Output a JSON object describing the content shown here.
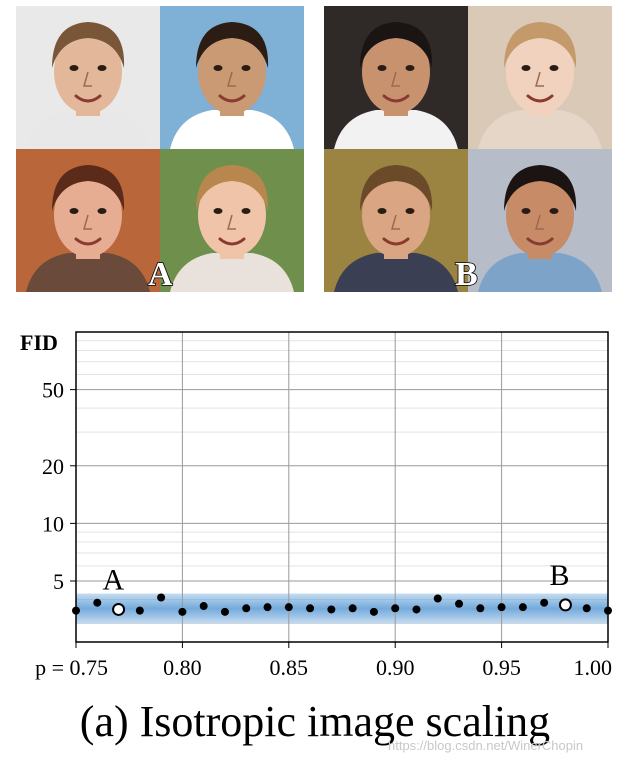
{
  "panels": {
    "a_label": "A",
    "b_label": "B",
    "a_tiles": [
      {
        "bg": "#e9e9e9",
        "skin": "#e3b89a",
        "hair": "#7a5638",
        "shirt": "#e8e8e8"
      },
      {
        "bg": "#7fb0d6",
        "skin": "#c99a74",
        "hair": "#2b1d14",
        "shirt": "#ffffff"
      },
      {
        "bg": "#b8663a",
        "skin": "#e6ad92",
        "hair": "#5b2a18",
        "shirt": "#6a4a3a"
      },
      {
        "bg": "#6f8f4c",
        "skin": "#f0c4a8",
        "hair": "#b8874e",
        "shirt": "#e9e2dc"
      }
    ],
    "b_tiles": [
      {
        "bg": "#2f2a28",
        "skin": "#c8926e",
        "hair": "#1a1412",
        "shirt": "#f2f2f2"
      },
      {
        "bg": "#d9c9b6",
        "skin": "#f1d2bf",
        "hair": "#c59a6a",
        "shirt": "#e5d6c8"
      },
      {
        "bg": "#9b8342",
        "skin": "#d9a582",
        "hair": "#6b4a2a",
        "shirt": "#3b3f54"
      },
      {
        "bg": "#b6bcc8",
        "skin": "#c78b68",
        "hair": "#1c1412",
        "shirt": "#7ea3c8"
      }
    ]
  },
  "chart_data": {
    "type": "scatter",
    "ylabel": "FID",
    "xlabel_prefix": "p = ",
    "xlim": [
      0.75,
      1.0
    ],
    "ylim": [
      2.4,
      100
    ],
    "yscale": "log",
    "yticks": [
      5,
      10,
      20,
      50
    ],
    "ytick_labels": [
      "5",
      "10",
      "20",
      "50"
    ],
    "xticks": [
      0.75,
      0.8,
      0.85,
      0.9,
      0.95,
      1.0
    ],
    "xtick_labels": [
      "0.75",
      "0.80",
      "0.85",
      "0.90",
      "0.95",
      "1.00"
    ],
    "grid": true,
    "band": {
      "lower": 3.0,
      "upper": 4.3,
      "color": "#5b9bd5"
    },
    "points": [
      {
        "x": 0.75,
        "y": 3.5
      },
      {
        "x": 0.76,
        "y": 3.85
      },
      {
        "x": 0.77,
        "y": 3.55,
        "marker": "open"
      },
      {
        "x": 0.78,
        "y": 3.5
      },
      {
        "x": 0.79,
        "y": 4.1
      },
      {
        "x": 0.8,
        "y": 3.45
      },
      {
        "x": 0.81,
        "y": 3.7
      },
      {
        "x": 0.82,
        "y": 3.45
      },
      {
        "x": 0.83,
        "y": 3.6
      },
      {
        "x": 0.84,
        "y": 3.65
      },
      {
        "x": 0.85,
        "y": 3.65
      },
      {
        "x": 0.86,
        "y": 3.6
      },
      {
        "x": 0.87,
        "y": 3.55
      },
      {
        "x": 0.88,
        "y": 3.6
      },
      {
        "x": 0.89,
        "y": 3.45
      },
      {
        "x": 0.9,
        "y": 3.6
      },
      {
        "x": 0.91,
        "y": 3.55
      },
      {
        "x": 0.92,
        "y": 4.05
      },
      {
        "x": 0.93,
        "y": 3.8
      },
      {
        "x": 0.94,
        "y": 3.6
      },
      {
        "x": 0.95,
        "y": 3.65
      },
      {
        "x": 0.96,
        "y": 3.65
      },
      {
        "x": 0.97,
        "y": 3.85
      },
      {
        "x": 0.98,
        "y": 3.75,
        "marker": "open"
      },
      {
        "x": 0.99,
        "y": 3.6
      },
      {
        "x": 1.0,
        "y": 3.5
      }
    ],
    "annotations": [
      {
        "text": "A",
        "x": 0.77,
        "y": 3.55
      },
      {
        "text": "B",
        "x": 0.98,
        "y": 3.75
      }
    ],
    "colors": {
      "point": "#000000",
      "open_fill": "#ffffff",
      "grid_major": "#9a9a9a",
      "grid_minor": "#e3e3e3"
    }
  },
  "caption": "(a) Isotropic image scaling",
  "watermark": "https://blog.csdn.net/WinerChopin"
}
